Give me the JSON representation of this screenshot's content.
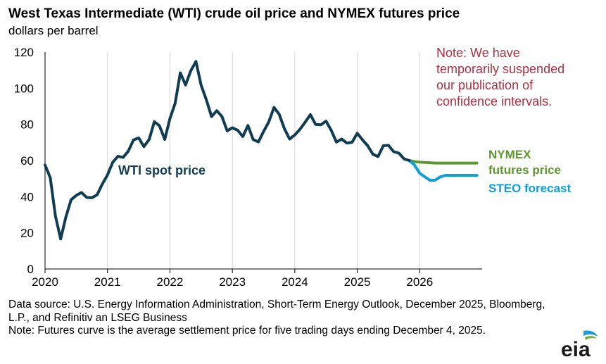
{
  "chart_data": {
    "type": "line",
    "title": "West Texas Intermediate (WTI) crude oil price and NYMEX futures price",
    "ylabel": "dollars per barrel",
    "xlabel": "",
    "ylim": [
      0,
      120
    ],
    "xlim": [
      2020,
      2027
    ],
    "y_ticks": [
      "0",
      "20",
      "40",
      "60",
      "80",
      "100",
      "120"
    ],
    "x_ticks": [
      "2020",
      "2021",
      "2022",
      "2023",
      "2024",
      "2025",
      "2026"
    ],
    "grid": "vertical",
    "colors": {
      "wti": "#0f3c52",
      "nymex": "#5e9732",
      "steo": "#0e9ed8",
      "grid": "#d4d4d4",
      "axis": "#000000"
    },
    "series": [
      {
        "name": "WTI spot price",
        "label": "WTI spot price",
        "x": [
          2020.0,
          2020.083,
          2020.167,
          2020.25,
          2020.333,
          2020.417,
          2020.5,
          2020.583,
          2020.667,
          2020.75,
          2020.833,
          2020.917,
          2021.0,
          2021.083,
          2021.167,
          2021.25,
          2021.333,
          2021.417,
          2021.5,
          2021.583,
          2021.667,
          2021.75,
          2021.833,
          2021.917,
          2022.0,
          2022.083,
          2022.167,
          2022.25,
          2022.333,
          2022.417,
          2022.5,
          2022.583,
          2022.667,
          2022.75,
          2022.833,
          2022.917,
          2023.0,
          2023.083,
          2023.167,
          2023.25,
          2023.333,
          2023.417,
          2023.5,
          2023.583,
          2023.667,
          2023.75,
          2023.833,
          2023.917,
          2024.0,
          2024.083,
          2024.167,
          2024.25,
          2024.333,
          2024.417,
          2024.5,
          2024.583,
          2024.667,
          2024.75,
          2024.833,
          2024.917,
          2025.0,
          2025.083,
          2025.167,
          2025.25,
          2025.333,
          2025.417,
          2025.5,
          2025.583,
          2025.667,
          2025.75,
          2025.833
        ],
        "values": [
          57.5,
          50.5,
          29.2,
          16.6,
          28.6,
          38.3,
          40.7,
          42.3,
          39.6,
          39.4,
          41.0,
          47.0,
          52.0,
          59.0,
          62.3,
          61.7,
          65.2,
          71.4,
          72.5,
          67.7,
          71.6,
          81.5,
          79.2,
          71.7,
          83.2,
          91.6,
          108.5,
          101.8,
          109.6,
          114.8,
          101.6,
          93.7,
          84.3,
          87.6,
          84.4,
          76.4,
          78.1,
          76.8,
          73.3,
          79.4,
          71.6,
          70.3,
          76.1,
          81.4,
          89.4,
          85.6,
          77.7,
          71.9,
          74.2,
          77.3,
          81.3,
          85.4,
          80.0,
          79.8,
          81.8,
          76.7,
          70.2,
          71.9,
          69.7,
          70.1,
          75.1,
          71.5,
          68.2,
          63.5,
          62.2,
          68.2,
          68.4,
          64.9,
          64.1,
          60.9,
          60.0
        ]
      },
      {
        "name": "NYMEX futures price",
        "label": [
          "NYMEX",
          "futures price"
        ],
        "x": [
          2025.833,
          2025.917,
          2026.0,
          2026.083,
          2026.167,
          2026.25,
          2026.333,
          2026.417,
          2026.5,
          2026.583,
          2026.667,
          2026.75,
          2026.833,
          2026.917
        ],
        "values": [
          60.0,
          59.4,
          59.1,
          58.9,
          58.8,
          58.6,
          58.6,
          58.6,
          58.6,
          58.6,
          58.6,
          58.6,
          58.6,
          58.6
        ]
      },
      {
        "name": "STEO forecast",
        "label": "STEO forecast",
        "x": [
          2025.833,
          2025.917,
          2026.0,
          2026.083,
          2026.167,
          2026.25,
          2026.333,
          2026.417,
          2026.5,
          2026.583,
          2026.667,
          2026.75,
          2026.833,
          2026.917
        ],
        "values": [
          60.0,
          57.5,
          53.0,
          51.0,
          49.0,
          49.2,
          51.0,
          51.8,
          51.8,
          51.8,
          51.8,
          51.8,
          51.8,
          51.8
        ]
      }
    ],
    "annotation": [
      "Note: We have",
      "temporarily suspended",
      "our publication  of",
      "confidence  intervals."
    ],
    "footer": {
      "source": "Data source: U.S. Energy Information Administration, Short-Term Energy Outlook, December 2025, Bloomberg, L.P., and Refinitiv an LSEG Business",
      "note": "Note: Futures curve is the average settlement price for five trading days ending December 4, 2025."
    },
    "logo_text": "eia"
  }
}
